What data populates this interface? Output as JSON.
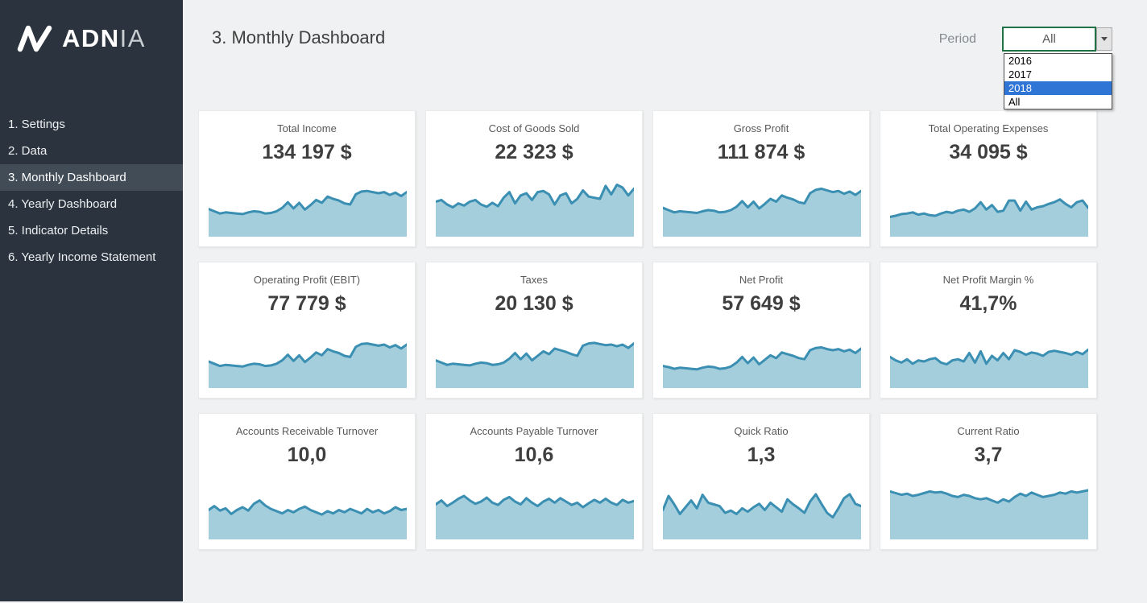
{
  "header": {
    "title": "3. Monthly Dashboard"
  },
  "period": {
    "label": "Period",
    "selected": "All",
    "options": [
      {
        "label": "2016",
        "highlighted": false
      },
      {
        "label": "2017",
        "highlighted": false
      },
      {
        "label": "2018",
        "highlighted": true
      },
      {
        "label": "All",
        "highlighted": false
      }
    ]
  },
  "sidebar": {
    "brand": {
      "bold": "ADN",
      "light": "IA"
    },
    "items": [
      {
        "label": "1. Settings",
        "active": false
      },
      {
        "label": "2. Data",
        "active": false
      },
      {
        "label": "3. Monthly Dashboard",
        "active": true
      },
      {
        "label": "4. Yearly Dashboard",
        "active": false
      },
      {
        "label": "5. Indicator Details",
        "active": false
      },
      {
        "label": "6. Yearly Income Statement",
        "active": false
      }
    ]
  },
  "colors": {
    "sidebar_bg": "#2a333e",
    "sidebar_active_bg": "#414c57",
    "main_bg": "#f0f1f2",
    "card_bg": "#ffffff",
    "spark_line": "#3a8fb2",
    "spark_fill": "#a5cedd",
    "excel_cell_border_green": "#217346",
    "dropdown_highlight_blue": "#2e75d6"
  },
  "chart_data": {
    "type": "area",
    "note": "12 KPI sparklines (no axes/ticks shown); 36 monthly points each for period All (2016-2018); point values are relative line heights 0-100 read from pixels",
    "series": [
      {
        "title": "Total Income",
        "value": "134 197 $",
        "points": [
          42,
          38,
          34,
          36,
          35,
          34,
          33,
          36,
          38,
          37,
          34,
          35,
          38,
          44,
          54,
          43,
          53,
          41,
          49,
          58,
          53,
          64,
          60,
          57,
          52,
          50,
          68,
          73,
          74,
          72,
          70,
          72,
          67,
          71,
          65,
          72
        ]
      },
      {
        "title": "Cost of Goods Sold",
        "value": "22 323 $",
        "points": [
          55,
          58,
          50,
          45,
          52,
          48,
          55,
          58,
          50,
          46,
          53,
          47,
          62,
          72,
          52,
          66,
          70,
          58,
          72,
          74,
          68,
          50,
          66,
          70,
          52,
          60,
          75,
          64,
          62,
          60,
          83,
          68,
          85,
          80,
          66,
          78
        ]
      },
      {
        "title": "Gross Profit",
        "value": "111 874 $",
        "points": [
          44,
          40,
          36,
          38,
          37,
          36,
          35,
          38,
          40,
          39,
          36,
          37,
          40,
          46,
          56,
          45,
          55,
          43,
          51,
          60,
          55,
          66,
          62,
          59,
          54,
          52,
          70,
          76,
          78,
          75,
          72,
          74,
          69,
          73,
          67,
          74
        ]
      },
      {
        "title": "Total Operating Expenses",
        "value": "34 095 $",
        "points": [
          28,
          30,
          33,
          34,
          36,
          32,
          34,
          31,
          30,
          34,
          37,
          35,
          39,
          41,
          37,
          43,
          54,
          41,
          49,
          37,
          39,
          57,
          57,
          39,
          55,
          41,
          45,
          47,
          51,
          54,
          59,
          51,
          45,
          54,
          57,
          44
        ]
      },
      {
        "title": "Operating Profit (EBIT)",
        "value": "77 779 $",
        "points": [
          40,
          36,
          32,
          34,
          33,
          32,
          31,
          34,
          36,
          35,
          32,
          33,
          36,
          42,
          52,
          41,
          51,
          39,
          47,
          56,
          51,
          62,
          58,
          55,
          50,
          48,
          66,
          71,
          72,
          70,
          68,
          70,
          65,
          69,
          63,
          70
        ]
      },
      {
        "title": "Taxes",
        "value": "20 130 $",
        "points": [
          42,
          38,
          34,
          36,
          35,
          34,
          33,
          36,
          38,
          37,
          34,
          35,
          38,
          45,
          55,
          44,
          54,
          42,
          50,
          58,
          53,
          63,
          60,
          57,
          53,
          50,
          68,
          72,
          73,
          71,
          69,
          70,
          67,
          70,
          64,
          72
        ]
      },
      {
        "title": "Net Profit",
        "value": "57 649 $",
        "points": [
          32,
          30,
          27,
          29,
          28,
          27,
          26,
          29,
          31,
          30,
          27,
          28,
          31,
          38,
          48,
          37,
          47,
          35,
          43,
          51,
          46,
          56,
          53,
          50,
          46,
          44,
          60,
          64,
          65,
          62,
          60,
          62,
          58,
          61,
          55,
          63
        ]
      },
      {
        "title": "Net Profit Margin %",
        "value": "41,7%",
        "points": [
          48,
          42,
          38,
          44,
          36,
          42,
          40,
          44,
          46,
          38,
          35,
          42,
          44,
          40,
          55,
          38,
          58,
          36,
          50,
          42,
          55,
          44,
          60,
          57,
          52,
          56,
          54,
          50,
          57,
          59,
          57,
          55,
          52,
          57,
          53,
          61
        ]
      },
      {
        "title": "Accounts Receivable Turnover",
        "value": "10,0",
        "points": [
          45,
          52,
          44,
          48,
          38,
          45,
          50,
          44,
          56,
          62,
          53,
          47,
          43,
          39,
          45,
          41,
          47,
          51,
          45,
          41,
          37,
          43,
          39,
          45,
          41,
          47,
          43,
          39,
          47,
          41,
          45,
          39,
          43,
          50,
          45,
          47
        ]
      },
      {
        "title": "Accounts Payable Turnover",
        "value": "10,6",
        "points": [
          55,
          62,
          52,
          58,
          65,
          70,
          62,
          56,
          60,
          67,
          58,
          54,
          63,
          68,
          60,
          55,
          66,
          58,
          52,
          60,
          65,
          58,
          66,
          60,
          54,
          58,
          50,
          57,
          63,
          58,
          65,
          58,
          54,
          63,
          58,
          61
        ]
      },
      {
        "title": "Quick Ratio",
        "value": "1,3",
        "points": [
          45,
          70,
          55,
          38,
          50,
          62,
          48,
          72,
          58,
          55,
          52,
          40,
          44,
          38,
          48,
          42,
          50,
          56,
          45,
          58,
          50,
          42,
          64,
          55,
          48,
          40,
          60,
          73,
          56,
          40,
          32,
          48,
          66,
          73,
          56,
          52
        ]
      },
      {
        "title": "Current Ratio",
        "value": "3,7",
        "points": [
          78,
          75,
          72,
          74,
          70,
          72,
          75,
          78,
          76,
          77,
          74,
          70,
          68,
          72,
          70,
          66,
          64,
          66,
          62,
          58,
          64,
          60,
          68,
          74,
          70,
          76,
          72,
          68,
          70,
          72,
          76,
          74,
          78,
          76,
          78,
          80
        ]
      }
    ]
  }
}
